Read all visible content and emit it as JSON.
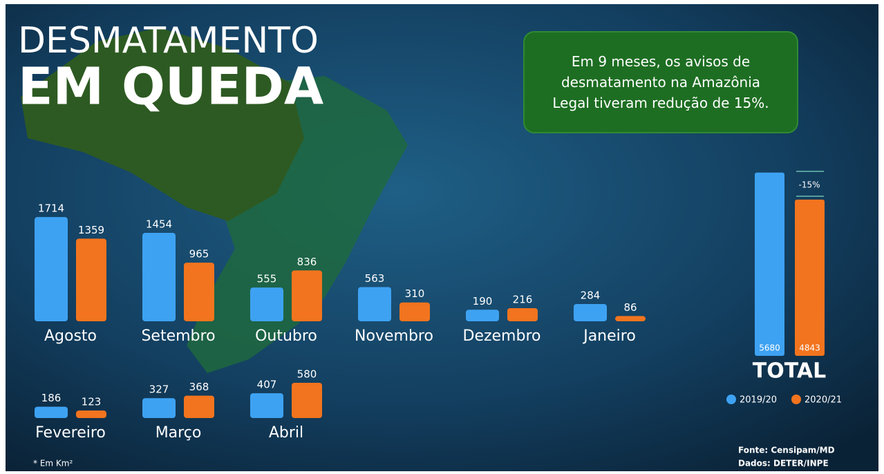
{
  "chart_data": {
    "type": "bar",
    "title": "DESMATAMENTO",
    "subtitle": "EM QUEDA",
    "annotation": "Em 9 meses, os avisos de desmatamento na Amazônia Legal tiveram redução de 15%.",
    "categories": [
      "Agosto",
      "Setembro",
      "Outubro",
      "Novembro",
      "Dezembro",
      "Janeiro",
      "Fevereiro",
      "Março",
      "Abril"
    ],
    "series": [
      {
        "name": "2019/20",
        "color": "#3ea2f2",
        "values": [
          1714,
          1454,
          555,
          563,
          190,
          284,
          186,
          327,
          407
        ]
      },
      {
        "name": "2020/21",
        "color": "#f2741e",
        "values": [
          1359,
          965,
          836,
          310,
          216,
          86,
          123,
          368,
          580
        ]
      }
    ],
    "total": {
      "label": "TOTAL",
      "values": [
        5680,
        4843
      ],
      "change": "-15%"
    },
    "note": "* Em Km²",
    "source": [
      "Fonte: Censipam/MD",
      "Dados: DETER/INPE"
    ]
  }
}
